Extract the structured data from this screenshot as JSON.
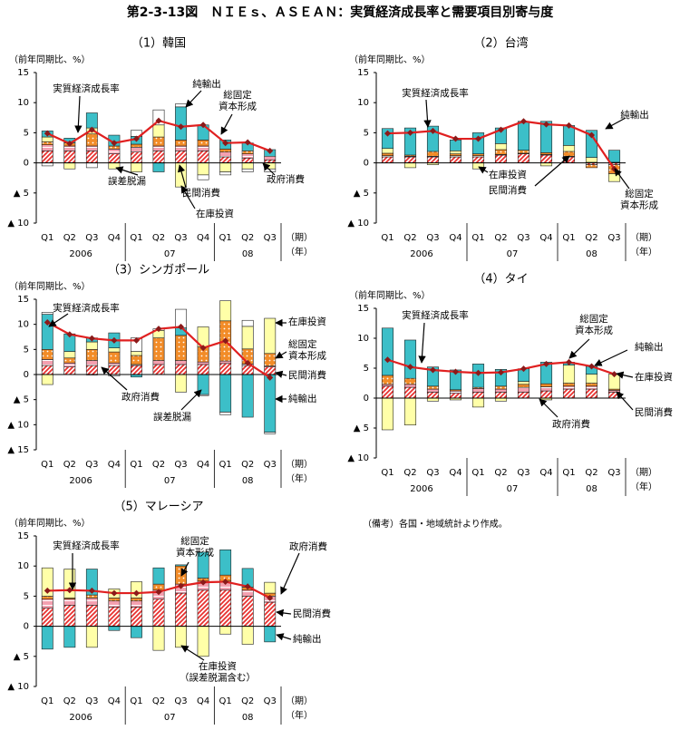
{
  "title": "第2-3-13図　ＮＩＥｓ、ＡＳＥＡＮ：実質経済成長率と需要項目別寄与度",
  "note": "（備考）各国・地域統計より作成。",
  "chart_data": [
    {
      "type": "bar",
      "title": "（1）韓国",
      "ylabel": "（前年同期比、%）",
      "x_unit": "（期）",
      "year_unit": "（年）",
      "categories": [
        "Q1",
        "Q2",
        "Q3",
        "Q4",
        "Q1",
        "Q2",
        "Q3",
        "Q4",
        "Q1",
        "Q2",
        "Q3"
      ],
      "years": [
        "2006",
        "07",
        "08"
      ],
      "ylim": [
        -10,
        15
      ],
      "yticks": [
        {
          "value": -10,
          "label": "▲ 10"
        },
        {
          "value": -5,
          "label": "▲ 5"
        },
        0,
        5,
        10,
        15
      ],
      "series": [
        {
          "name": "民間消費",
          "color": "#e8312f",
          "pattern": "stripe",
          "values": [
            2,
            2,
            2,
            1.5,
            1.8,
            2,
            2,
            2,
            1,
            0.8,
            0.5
          ]
        },
        {
          "name": "政府消費",
          "color": "#f4a0b0",
          "pattern": "hlines",
          "values": [
            1,
            0.8,
            0.8,
            0.8,
            0.8,
            0.8,
            0.8,
            0.8,
            0.8,
            0.7,
            0.6
          ]
        },
        {
          "name": "総固定\n資本形成",
          "color": "#f28c28",
          "pattern": "dots",
          "values": [
            0.5,
            0.5,
            2,
            0.5,
            0.5,
            1.5,
            1,
            1,
            0.5,
            0.5,
            0
          ]
        },
        {
          "name": "在庫投資",
          "color": "#ffffa8",
          "pattern": "solid",
          "values": [
            0.8,
            -1,
            1,
            -1,
            -1.5,
            2,
            -4,
            -2,
            -1.5,
            -1,
            -1
          ]
        },
        {
          "name": "純輸出",
          "color": "#3cbfc8",
          "pattern": "solid",
          "values": [
            1,
            0.8,
            2.5,
            1.8,
            1.3,
            -1.5,
            5.5,
            2.5,
            1.5,
            1.3,
            1.1
          ]
        },
        {
          "name": "誤差脱漏",
          "color": "#ffffff",
          "pattern": "solid",
          "values": [
            -0.5,
            0,
            -0.8,
            0,
            1,
            2.5,
            0.5,
            -0.8,
            -0.5,
            -0.5,
            -0.5
          ]
        }
      ],
      "line": {
        "name": "実質経済成長率",
        "color": "#e02020",
        "values": [
          4.9,
          3.2,
          5.5,
          3.3,
          4.0,
          7.0,
          6.0,
          6.3,
          3.3,
          3.4,
          2.0
        ]
      }
    },
    {
      "type": "bar",
      "title": "（2）台湾",
      "ylabel": "（前年同期比、%）",
      "x_unit": "（期）",
      "year_unit": "（年）",
      "categories": [
        "Q1",
        "Q2",
        "Q3",
        "Q4",
        "Q1",
        "Q2",
        "Q3",
        "Q4",
        "Q1",
        "Q2",
        "Q3"
      ],
      "years": [
        "2006",
        "07",
        "08"
      ],
      "ylim": [
        -10,
        15
      ],
      "yticks": [
        {
          "value": -10,
          "label": "▲ 10"
        },
        {
          "value": -5,
          "label": "▲ 5"
        },
        0,
        5,
        10,
        15
      ],
      "series": [
        {
          "name": "民間消費",
          "color": "#e8312f",
          "pattern": "stripe",
          "values": [
            1,
            1,
            1,
            1,
            1,
            1.3,
            1.5,
            1.3,
            1,
            -0.3,
            -0.3
          ]
        },
        {
          "color": "#f4a0b0",
          "pattern": "hlines",
          "values": [
            0.2,
            0.1,
            0.1,
            0.2,
            0.2,
            0.1,
            0.1,
            0.1,
            0.1,
            0.1,
            0.1
          ]
        },
        {
          "name": "総固定\n資本形成",
          "color": "#f28c28",
          "pattern": "dots",
          "values": [
            0.4,
            0.2,
            0.8,
            0.3,
            0.3,
            0.8,
            0.5,
            0.3,
            0.8,
            -0.5,
            -1.5
          ]
        },
        {
          "name": "在庫投資",
          "color": "#ffffa8",
          "pattern": "solid",
          "values": [
            0.8,
            -0.8,
            -0.3,
            0.5,
            -1,
            1,
            0,
            -0.5,
            1,
            0.8,
            -1.3
          ]
        },
        {
          "name": "純輸出",
          "color": "#3cbfc8",
          "pattern": "solid",
          "values": [
            3.3,
            4.5,
            4.2,
            1.8,
            3.5,
            2.6,
            4.8,
            5.2,
            3.3,
            4.5,
            2.0
          ]
        }
      ],
      "line": {
        "name": "実質経済成長率",
        "color": "#e02020",
        "values": [
          4.9,
          5.0,
          5.3,
          4.0,
          4.0,
          5.5,
          6.9,
          6.4,
          6.2,
          4.6,
          -1.0
        ]
      }
    },
    {
      "type": "bar",
      "title": "（3）シンガポール",
      "ylabel": "（前年同期比、%）",
      "x_unit": "（期）",
      "year_unit": "（年）",
      "categories": [
        "Q1",
        "Q2",
        "Q3",
        "Q4",
        "Q1",
        "Q2",
        "Q3",
        "Q4",
        "Q1",
        "Q2",
        "Q3"
      ],
      "years": [
        "2006",
        "07",
        "08"
      ],
      "ylim": [
        -15,
        15
      ],
      "yticks": [
        {
          "value": -15,
          "label": "▲ 15"
        },
        {
          "value": -10,
          "label": "▲ 10"
        },
        {
          "value": -5,
          "label": "▲ 5"
        },
        0,
        5,
        10,
        15
      ],
      "series": [
        {
          "name": "民間消費",
          "color": "#e8312f",
          "pattern": "stripe",
          "values": [
            1.8,
            1.5,
            1.8,
            1.8,
            1.8,
            2,
            2,
            2,
            2.2,
            1.8,
            1.5
          ]
        },
        {
          "name": "政府消費",
          "color": "#f4a0b0",
          "pattern": "hlines",
          "values": [
            1.2,
            0.8,
            1,
            0.5,
            0.2,
            0.8,
            0.8,
            0.5,
            0.5,
            0.3,
            0.2
          ]
        },
        {
          "name": "総固定\n資本形成",
          "color": "#f28c28",
          "pattern": "dots",
          "values": [
            2,
            1,
            2.2,
            2.2,
            1.8,
            4.5,
            5,
            3,
            8,
            3,
            2.5
          ]
        },
        {
          "name": "在庫投資",
          "color": "#ffffa8",
          "pattern": "solid",
          "values": [
            -2,
            1.3,
            1.5,
            0.8,
            0.8,
            1.5,
            -3.5,
            4,
            4,
            4.5,
            7
          ]
        },
        {
          "name": "純輸出",
          "color": "#3cbfc8",
          "pattern": "solid",
          "values": [
            7,
            3.5,
            0.8,
            3,
            -0.5,
            0,
            1.5,
            -4,
            -7.5,
            -8.5,
            -11.5
          ]
        },
        {
          "name": "誤差脱漏",
          "color": "#ffffff",
          "pattern": "solid",
          "values": [
            0.4,
            0,
            -0.1,
            -0.3,
            2.7,
            0.3,
            3.7,
            -0.2,
            -0.5,
            1.2,
            -0.3
          ]
        }
      ],
      "line": {
        "name": "実質経済成長率",
        "color": "#e02020",
        "values": [
          10.4,
          8.0,
          7.2,
          6.8,
          6.8,
          9.1,
          9.5,
          5.3,
          6.7,
          2.3,
          -0.6
        ]
      }
    },
    {
      "type": "bar",
      "title": "（4）タイ",
      "ylabel": "（前年同期比、%）",
      "x_unit": "（期）",
      "year_unit": "（年）",
      "categories": [
        "Q1",
        "Q2",
        "Q3",
        "Q4",
        "Q1",
        "Q2",
        "Q3",
        "Q4",
        "Q1",
        "Q2",
        "Q3"
      ],
      "years": [
        "2006",
        "07",
        "08"
      ],
      "ylim": [
        -10,
        15
      ],
      "yticks": [
        {
          "value": -10,
          "label": "▲ 10"
        },
        {
          "value": -5,
          "label": "▲ 5"
        },
        0,
        5,
        10,
        15
      ],
      "series": [
        {
          "name": "民間消費",
          "color": "#e8312f",
          "pattern": "stripe",
          "values": [
            2,
            1.8,
            1,
            0.8,
            1,
            1,
            1,
            1.2,
            1.5,
            1.5,
            1
          ]
        },
        {
          "name": "政府消費",
          "color": "#f4a0b0",
          "pattern": "hlines",
          "values": [
            0.3,
            0.5,
            0.5,
            0.4,
            0.6,
            0.5,
            0.8,
            0.7,
            0.5,
            0.5,
            0.3
          ]
        },
        {
          "name": "総固定\n資本形成",
          "color": "#f28c28",
          "pattern": "dots",
          "values": [
            1.5,
            1,
            0.5,
            0.2,
            0.2,
            0.5,
            0.5,
            0.5,
            0.5,
            0.5,
            0.2
          ]
        },
        {
          "name": "在庫投資",
          "color": "#ffffa8",
          "pattern": "solid",
          "values": [
            -5.3,
            -4.5,
            -0.5,
            -0.3,
            -1.5,
            -0.5,
            0.5,
            -0.3,
            3,
            1.5,
            2.5
          ]
        },
        {
          "name": "純輸出",
          "color": "#3cbfc8",
          "pattern": "solid",
          "values": [
            7.9,
            6.4,
            3.2,
            3.3,
            3.9,
            2.8,
            2.1,
            3.6,
            0.5,
            1.3,
            0
          ]
        }
      ],
      "line": {
        "name": "実質経済成長率",
        "color": "#e02020",
        "values": [
          6.4,
          5.2,
          4.7,
          4.4,
          4.2,
          4.3,
          4.9,
          5.7,
          6.0,
          5.3,
          4.0
        ]
      }
    },
    {
      "type": "bar",
      "title": "（5）マレーシア",
      "ylabel": "（前年同期比、%）",
      "x_unit": "（期）",
      "year_unit": "（年）",
      "categories": [
        "Q1",
        "Q2",
        "Q3",
        "Q4",
        "Q1",
        "Q2",
        "Q3",
        "Q4",
        "Q1",
        "Q2",
        "Q3"
      ],
      "years": [
        "2006",
        "07",
        "08"
      ],
      "ylim": [
        -10,
        15
      ],
      "yticks": [
        {
          "value": -10,
          "label": "▲ 10"
        },
        {
          "value": -5,
          "label": "▲ 5"
        },
        0,
        5,
        10,
        15
      ],
      "series": [
        {
          "name": "民間消費",
          "color": "#e8312f",
          "pattern": "stripe",
          "values": [
            3,
            3.5,
            3.5,
            3.2,
            3.2,
            4.5,
            5.5,
            6,
            6,
            5,
            4
          ]
        },
        {
          "name": "政府消費",
          "color": "#f4a0b0",
          "pattern": "hlines",
          "values": [
            1.5,
            1,
            1.2,
            1,
            1,
            1.5,
            1.5,
            1.5,
            1.5,
            1,
            1
          ]
        },
        {
          "name": "総固定\n資本形成",
          "color": "#f28c28",
          "pattern": "dots",
          "values": [
            0.5,
            0.2,
            0.5,
            0.5,
            0.5,
            1,
            3,
            0.5,
            1,
            0.5,
            0.5
          ]
        },
        {
          "name": "在庫投資\n（誤差脱漏含む）",
          "color": "#ffffa8",
          "pattern": "solid",
          "values": [
            4.7,
            4.8,
            -3.5,
            1.5,
            2.7,
            -4,
            -3.5,
            -5,
            -1.3,
            -3,
            1.8
          ]
        },
        {
          "name": "純輸出",
          "color": "#3cbfc8",
          "pattern": "solid",
          "values": [
            -3.8,
            -3.5,
            4.3,
            -0.7,
            -1.9,
            2.7,
            0.2,
            4.3,
            4.2,
            3.1,
            -2.6
          ]
        }
      ],
      "line": {
        "name": "実質経済成長率",
        "color": "#e02020",
        "values": [
          5.9,
          6.0,
          5.9,
          5.5,
          5.5,
          5.7,
          6.7,
          7.3,
          7.4,
          6.6,
          4.7
        ]
      }
    }
  ]
}
